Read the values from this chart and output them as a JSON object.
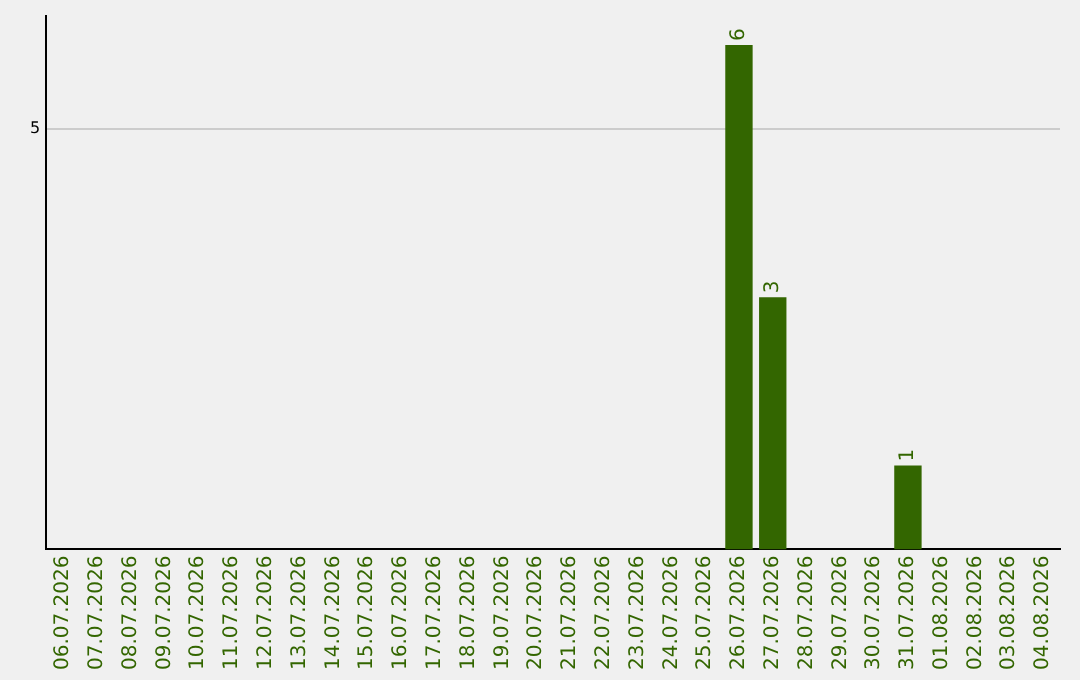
{
  "chart_data": {
    "type": "bar",
    "categories": [
      "06.07.2026",
      "07.07.2026",
      "08.07.2026",
      "09.07.2026",
      "10.07.2026",
      "11.07.2026",
      "12.07.2026",
      "13.07.2026",
      "14.07.2026",
      "15.07.2026",
      "16.07.2026",
      "17.07.2026",
      "18.07.2026",
      "19.07.2026",
      "20.07.2026",
      "21.07.2026",
      "22.07.2026",
      "23.07.2026",
      "24.07.2026",
      "25.07.2026",
      "26.07.2026",
      "27.07.2026",
      "28.07.2026",
      "29.07.2026",
      "30.07.2026",
      "31.07.2026",
      "01.08.2026",
      "02.08.2026",
      "03.08.2026",
      "04.08.2026"
    ],
    "values": [
      null,
      null,
      null,
      null,
      null,
      null,
      null,
      null,
      null,
      null,
      null,
      null,
      null,
      null,
      null,
      null,
      null,
      null,
      null,
      null,
      6,
      3,
      null,
      null,
      null,
      1,
      null,
      null,
      null,
      null
    ],
    "value_labels": [
      null,
      null,
      null,
      null,
      null,
      null,
      null,
      null,
      null,
      null,
      null,
      null,
      null,
      null,
      null,
      null,
      null,
      null,
      null,
      null,
      "6",
      "3",
      null,
      null,
      null,
      "1",
      null,
      null,
      null,
      null
    ],
    "color": "#336600",
    "ylim": [
      0,
      6.35
    ],
    "yticks": [
      5
    ],
    "grid": "y",
    "legend": false
  }
}
